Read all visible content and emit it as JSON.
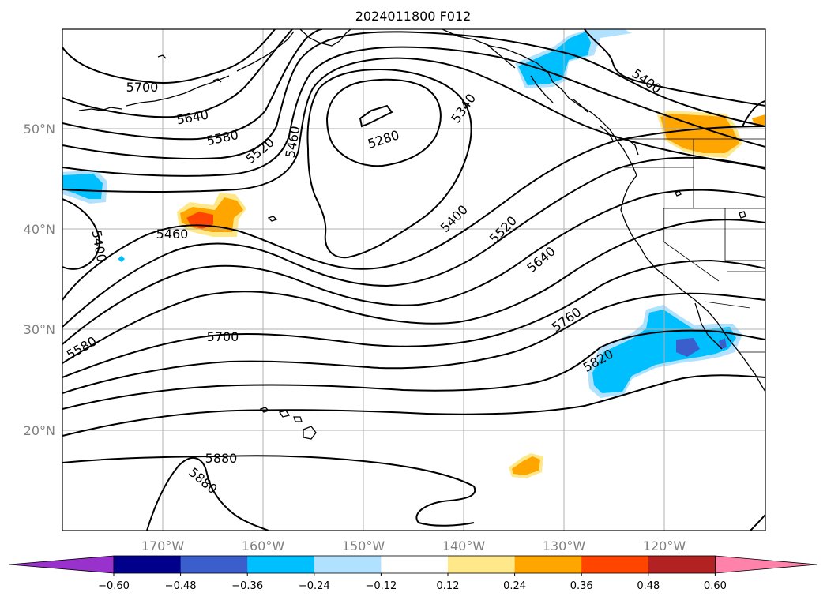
{
  "title": "2024011800 F012",
  "map": {
    "lat_labels": [
      "50°N",
      "40°N",
      "30°N",
      "20°N"
    ],
    "lon_labels": [
      "170°W",
      "160°W",
      "150°W",
      "140°W",
      "130°W",
      "120°W"
    ],
    "contour_labels": [
      "5700",
      "5640",
      "5580",
      "5520",
      "5460",
      "5280",
      "5340",
      "5400",
      "5400",
      "5460",
      "5400",
      "5520",
      "5640",
      "5760",
      "5820",
      "5700",
      "5580",
      "5880",
      "5880"
    ]
  },
  "colorbar": {
    "tick_labels": [
      "−0.60",
      "−0.48",
      "−0.36",
      "−0.24",
      "−0.12",
      "0.12",
      "0.24",
      "0.36",
      "0.48",
      "0.60"
    ],
    "colors": [
      "#9932cc",
      "#00008b",
      "#3a5fcd",
      "#00bfff",
      "#b0e2ff",
      "#ffffff",
      "#ffe88a",
      "#ffa500",
      "#ff4500",
      "#b22222",
      "#ff82ab"
    ]
  }
}
